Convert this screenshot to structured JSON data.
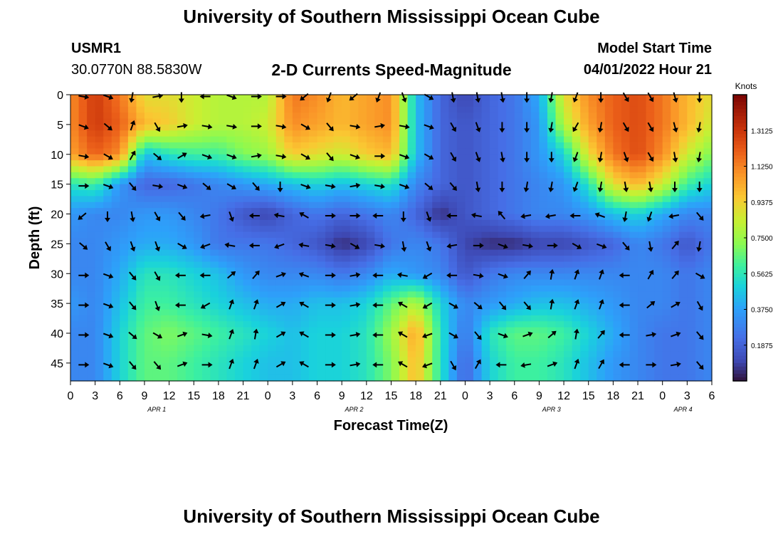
{
  "header": {
    "title": "University of Southern Mississippi Ocean Cube",
    "station": "USMR1",
    "location": "30.0770N  88.5830W",
    "chart_title": "2-D Currents Speed-Magnitude",
    "model_label": "Model Start Time",
    "model_time": "04/01/2022 Hour 21",
    "footer_title": "University of Southern Mississippi Ocean Cube"
  },
  "chart_data": {
    "type": "heatmap",
    "title": "2-D Currents Speed-Magnitude",
    "xlabel": "Forecast Time(Z)",
    "ylabel": "Depth (ft)",
    "colorbar_label": "Knots",
    "colorbar_ticks": [
      "1.3125",
      "1.1250",
      "0.9375",
      "0.7500",
      "0.5625",
      "0.3750",
      "0.1875"
    ],
    "colorbar_values": [
      1.3125,
      1.125,
      0.9375,
      0.75,
      0.5625,
      0.375,
      0.1875
    ],
    "color_range": [
      0.0,
      1.5
    ],
    "x_tick_labels": [
      "0",
      "3",
      "6",
      "9",
      "12",
      "15",
      "18",
      "21",
      "0",
      "3",
      "6",
      "9",
      "12",
      "15",
      "18",
      "21",
      "0",
      "3",
      "6",
      "9",
      "12",
      "15",
      "18",
      "21",
      "0",
      "3",
      "6"
    ],
    "x_range_hours": [
      0,
      78
    ],
    "date_labels": [
      {
        "label": "APR 1",
        "hour": 10.5
      },
      {
        "label": "APR 2",
        "hour": 34.5
      },
      {
        "label": "APR 3",
        "hour": 58.5
      },
      {
        "label": "APR 4",
        "hour": 74.5
      }
    ],
    "y_ticks": [
      0,
      5,
      10,
      15,
      20,
      25,
      30,
      35,
      40,
      45
    ],
    "y_tick_labels": [
      "0",
      "5",
      "10",
      "15",
      "20",
      "25",
      "30",
      "35",
      "40",
      "45"
    ],
    "ylim": [
      0,
      48
    ],
    "speed_hours": [
      0,
      3,
      6,
      9,
      12,
      15,
      18,
      21,
      24,
      27,
      30,
      33,
      36,
      39,
      42,
      45,
      48,
      51,
      54,
      57,
      60,
      63,
      66,
      69,
      72,
      75,
      78
    ],
    "speed_depths": [
      0,
      5,
      10,
      15,
      20,
      25,
      30,
      35,
      40,
      45
    ],
    "speed": [
      [
        1.1,
        1.3,
        1.15,
        0.9,
        0.9,
        0.85,
        0.8,
        0.8,
        0.8,
        1.15,
        1.1,
        1.0,
        1.05,
        1.1,
        0.45,
        0.2,
        0.1,
        0.2,
        0.25,
        0.4,
        0.9,
        1.1,
        1.2,
        1.25,
        1.15,
        1.0,
        0.9
      ],
      [
        1.1,
        1.3,
        1.2,
        1.0,
        0.95,
        0.85,
        0.8,
        0.8,
        0.85,
        1.1,
        1.05,
        1.0,
        1.05,
        1.1,
        0.45,
        0.2,
        0.15,
        0.2,
        0.25,
        0.35,
        0.8,
        1.05,
        1.2,
        1.25,
        1.15,
        1.0,
        0.85
      ],
      [
        1.05,
        1.2,
        1.1,
        0.45,
        0.55,
        0.6,
        0.6,
        0.7,
        0.75,
        0.95,
        0.9,
        0.85,
        0.95,
        1.0,
        0.45,
        0.2,
        0.15,
        0.2,
        0.25,
        0.35,
        0.5,
        0.9,
        1.15,
        1.25,
        1.1,
        0.85,
        0.7
      ],
      [
        0.55,
        0.6,
        0.35,
        0.2,
        0.2,
        0.25,
        0.3,
        0.35,
        0.4,
        0.45,
        0.5,
        0.45,
        0.5,
        0.55,
        0.3,
        0.2,
        0.15,
        0.2,
        0.25,
        0.3,
        0.35,
        0.55,
        0.9,
        1.0,
        0.85,
        0.6,
        0.5
      ],
      [
        0.35,
        0.3,
        0.3,
        0.35,
        0.35,
        0.3,
        0.25,
        0.15,
        0.1,
        0.2,
        0.25,
        0.2,
        0.25,
        0.3,
        0.2,
        0.05,
        0.15,
        0.2,
        0.25,
        0.3,
        0.3,
        0.35,
        0.45,
        0.5,
        0.4,
        0.3,
        0.3
      ],
      [
        0.3,
        0.3,
        0.35,
        0.4,
        0.4,
        0.35,
        0.25,
        0.25,
        0.25,
        0.2,
        0.15,
        0.05,
        0.1,
        0.25,
        0.3,
        0.25,
        0.1,
        0.05,
        0.05,
        0.1,
        0.1,
        0.15,
        0.2,
        0.3,
        0.25,
        0.15,
        0.25
      ],
      [
        0.3,
        0.3,
        0.4,
        0.55,
        0.55,
        0.5,
        0.45,
        0.35,
        0.3,
        0.3,
        0.3,
        0.25,
        0.3,
        0.4,
        0.35,
        0.3,
        0.15,
        0.25,
        0.3,
        0.3,
        0.3,
        0.3,
        0.3,
        0.3,
        0.3,
        0.25,
        0.3
      ],
      [
        0.35,
        0.3,
        0.45,
        0.6,
        0.6,
        0.55,
        0.5,
        0.45,
        0.4,
        0.4,
        0.45,
        0.45,
        0.5,
        0.65,
        0.8,
        0.5,
        0.3,
        0.35,
        0.4,
        0.45,
        0.45,
        0.4,
        0.35,
        0.3,
        0.3,
        0.25,
        0.3
      ],
      [
        0.3,
        0.3,
        0.5,
        0.65,
        0.7,
        0.65,
        0.6,
        0.55,
        0.5,
        0.45,
        0.5,
        0.5,
        0.55,
        0.75,
        1.05,
        0.55,
        0.25,
        0.55,
        0.65,
        0.65,
        0.6,
        0.5,
        0.4,
        0.3,
        0.25,
        0.25,
        0.3
      ],
      [
        0.3,
        0.3,
        0.5,
        0.65,
        0.65,
        0.6,
        0.55,
        0.5,
        0.45,
        0.45,
        0.5,
        0.5,
        0.55,
        0.7,
        1.0,
        0.55,
        0.2,
        0.5,
        0.6,
        0.6,
        0.55,
        0.45,
        0.35,
        0.3,
        0.25,
        0.25,
        0.3
      ]
    ],
    "vector_dir_deg": [
      [
        100,
        110,
        190,
        80,
        180,
        270,
        110,
        90,
        90,
        230,
        200,
        230,
        200,
        160,
        120,
        170,
        170,
        170,
        180,
        190,
        200,
        180,
        150,
        150,
        165,
        180,
        120
      ],
      [
        110,
        130,
        20,
        150,
        80,
        100,
        100,
        90,
        100,
        120,
        140,
        100,
        80,
        100,
        110,
        150,
        160,
        180,
        180,
        190,
        210,
        190,
        150,
        150,
        165,
        190,
        130
      ],
      [
        100,
        120,
        30,
        130,
        60,
        110,
        110,
        80,
        100,
        120,
        140,
        110,
        90,
        110,
        120,
        150,
        160,
        170,
        180,
        180,
        200,
        190,
        160,
        150,
        170,
        190,
        130
      ],
      [
        90,
        110,
        140,
        100,
        110,
        130,
        120,
        140,
        180,
        110,
        100,
        80,
        100,
        110,
        130,
        140,
        170,
        180,
        190,
        190,
        200,
        190,
        170,
        170,
        180,
        180,
        130
      ],
      [
        230,
        180,
        170,
        150,
        140,
        260,
        160,
        270,
        280,
        300,
        90,
        90,
        270,
        180,
        160,
        270,
        280,
        320,
        260,
        260,
        270,
        290,
        190,
        200,
        260,
        140,
        130
      ],
      [
        130,
        150,
        160,
        160,
        120,
        250,
        280,
        270,
        250,
        280,
        100,
        120,
        100,
        170,
        160,
        260,
        90,
        110,
        100,
        90,
        120,
        110,
        140,
        170,
        40,
        190,
        140
      ],
      [
        90,
        110,
        140,
        150,
        270,
        270,
        50,
        40,
        70,
        290,
        90,
        80,
        270,
        280,
        240,
        270,
        100,
        110,
        40,
        10,
        20,
        20,
        270,
        30,
        40,
        120,
        130
      ],
      [
        90,
        110,
        140,
        160,
        270,
        240,
        20,
        20,
        60,
        300,
        90,
        80,
        270,
        300,
        240,
        120,
        130,
        140,
        140,
        10,
        20,
        20,
        270,
        50,
        60,
        150,
        140
      ],
      [
        90,
        110,
        130,
        120,
        70,
        100,
        20,
        10,
        60,
        300,
        90,
        80,
        270,
        300,
        250,
        120,
        140,
        110,
        70,
        50,
        10,
        40,
        270,
        80,
        70,
        140,
        150
      ],
      [
        90,
        110,
        140,
        140,
        70,
        90,
        20,
        20,
        60,
        300,
        90,
        80,
        270,
        300,
        250,
        150,
        30,
        270,
        260,
        70,
        20,
        30,
        270,
        90,
        80,
        140,
        150
      ]
    ]
  }
}
